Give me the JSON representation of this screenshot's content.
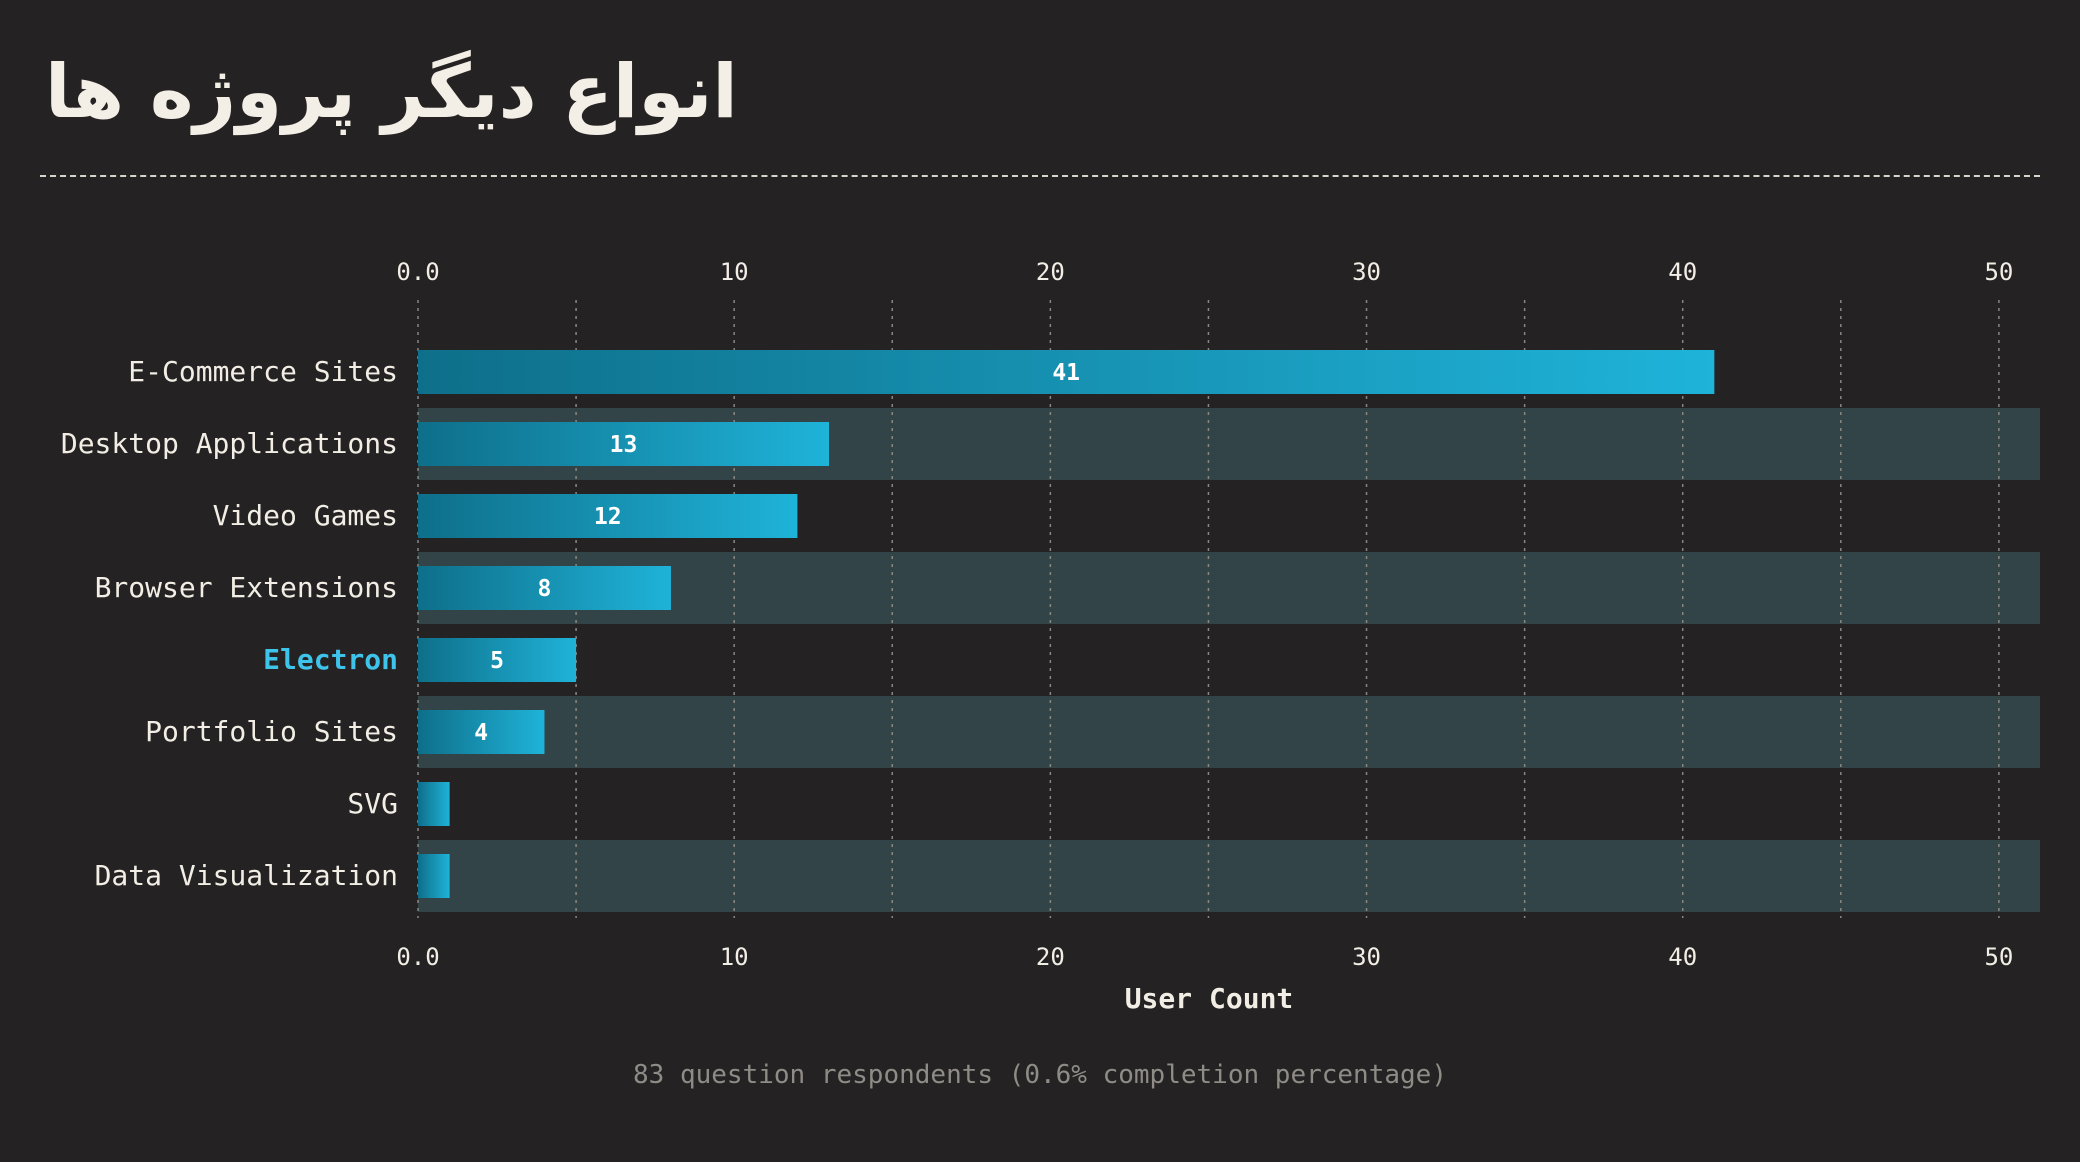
{
  "page": {
    "title": "انواع دیگر پروژه ها",
    "footer": "83 question respondents (0.6% completion percentage)"
  },
  "chart_data": {
    "type": "bar",
    "orientation": "horizontal",
    "title": "انواع دیگر پروژه ها",
    "xlabel": "User Count",
    "ylabel": "",
    "xlim": [
      0,
      51.3
    ],
    "xticks": [
      "0.0",
      "10",
      "20",
      "30",
      "40",
      "50"
    ],
    "xtick_values": [
      0,
      10,
      20,
      30,
      40,
      50
    ],
    "minor_gridlines": [
      5,
      15,
      25,
      35,
      45
    ],
    "grid": true,
    "categories": [
      "E-Commerce Sites",
      "Desktop Applications",
      "Video Games",
      "Browser Extensions",
      "Electron",
      "Portfolio Sites",
      "SVG",
      "Data Visualization"
    ],
    "values": [
      41,
      13,
      12,
      8,
      5,
      4,
      1,
      1
    ],
    "value_labels": [
      "41",
      "13",
      "12",
      "8",
      "5",
      "4",
      "",
      ""
    ],
    "highlight_category": "Electron",
    "colors": {
      "bar_start": "#0e6f8a",
      "bar_end": "#1fb3d9",
      "band": "#334449",
      "highlight_text": "#3ec4ea",
      "text": "#f2eee6",
      "grid": "#8a8680"
    }
  }
}
